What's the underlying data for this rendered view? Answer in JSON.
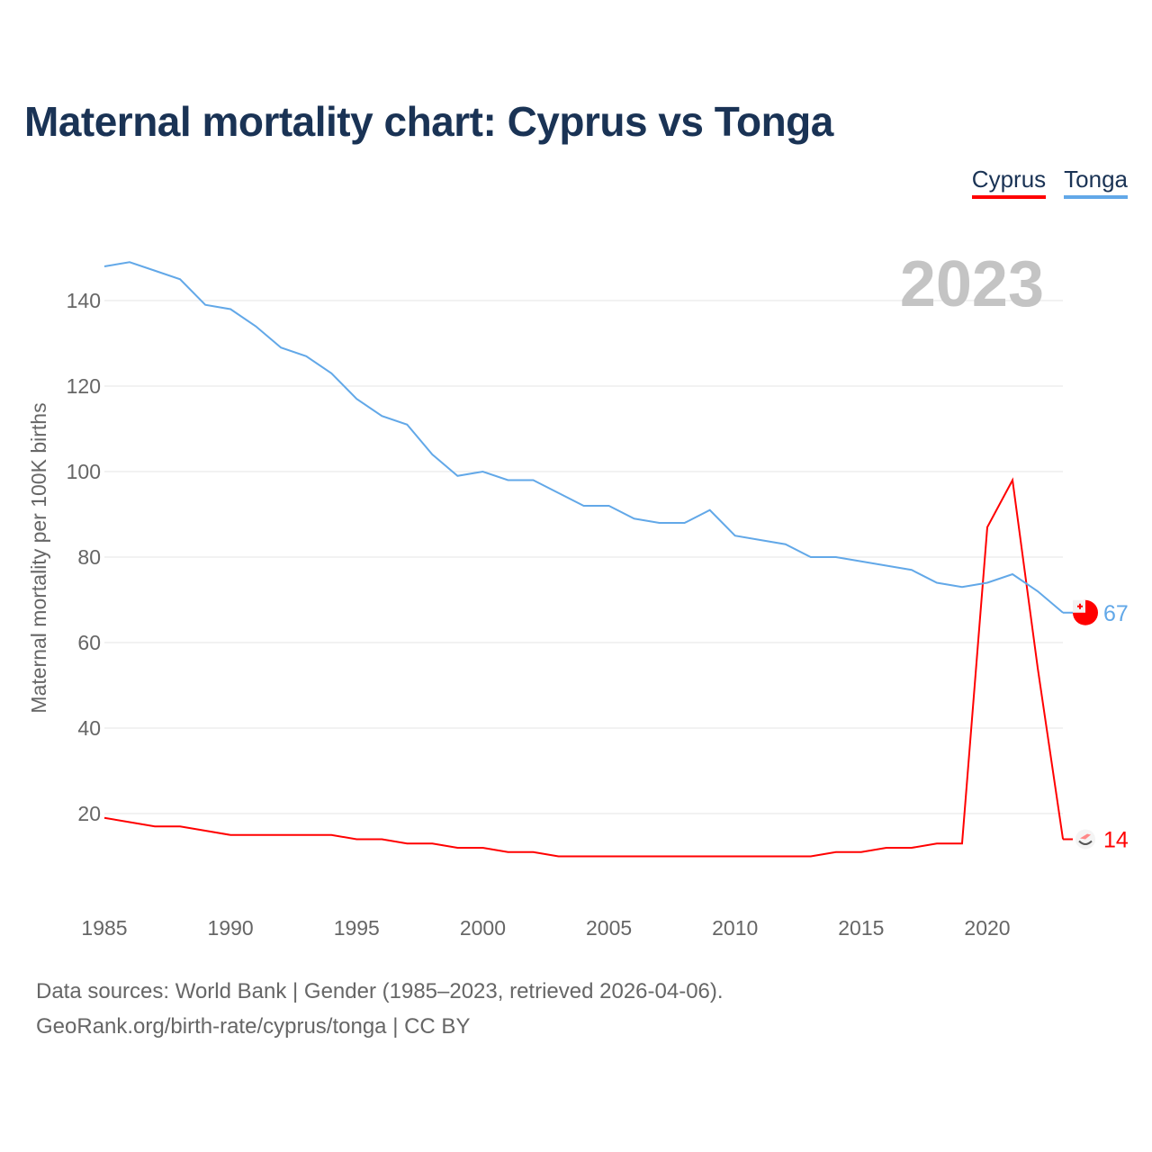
{
  "chart_data": {
    "type": "line",
    "title": "Maternal mortality chart: Cyprus vs Tonga",
    "ylabel": "Maternal mortality per 100K births",
    "xlabel": "",
    "year_label": "2023",
    "x": [
      1985,
      1986,
      1987,
      1988,
      1989,
      1990,
      1991,
      1992,
      1993,
      1994,
      1995,
      1996,
      1997,
      1998,
      1999,
      2000,
      2001,
      2002,
      2003,
      2004,
      2005,
      2006,
      2007,
      2008,
      2009,
      2010,
      2011,
      2012,
      2013,
      2014,
      2015,
      2016,
      2017,
      2018,
      2019,
      2020,
      2021,
      2022,
      2023
    ],
    "series": [
      {
        "name": "Cyprus",
        "color": "#ff0000",
        "end_label": "14",
        "values": [
          19,
          18,
          17,
          17,
          16,
          15,
          15,
          15,
          15,
          15,
          14,
          14,
          13,
          13,
          12,
          12,
          11,
          11,
          10,
          10,
          10,
          10,
          10,
          10,
          10,
          10,
          10,
          10,
          10,
          11,
          11,
          12,
          12,
          13,
          13,
          87,
          98,
          54,
          14
        ]
      },
      {
        "name": "Tonga",
        "color": "#62a8e8",
        "end_label": "67",
        "values": [
          148,
          149,
          147,
          145,
          139,
          138,
          134,
          129,
          127,
          123,
          117,
          113,
          111,
          104,
          99,
          100,
          98,
          98,
          95,
          92,
          92,
          89,
          88,
          88,
          91,
          85,
          84,
          83,
          80,
          80,
          79,
          78,
          77,
          74,
          73,
          74,
          76,
          72,
          67
        ]
      }
    ],
    "xlim": [
      1985,
      2023
    ],
    "ylim": [
      0,
      150
    ],
    "yticks": [
      "20",
      "40",
      "60",
      "80",
      "100",
      "120",
      "140"
    ],
    "xticks": [
      "1985",
      "1990",
      "1995",
      "2000",
      "2005",
      "2010",
      "2015",
      "2020"
    ],
    "grid": true,
    "legend": "top-right"
  },
  "footer": {
    "line1": "Data sources: World Bank | Gender (1985–2023, retrieved 2026-04-06).",
    "line2": "GeoRank.org/birth-rate/cyprus/tonga | CC BY"
  }
}
